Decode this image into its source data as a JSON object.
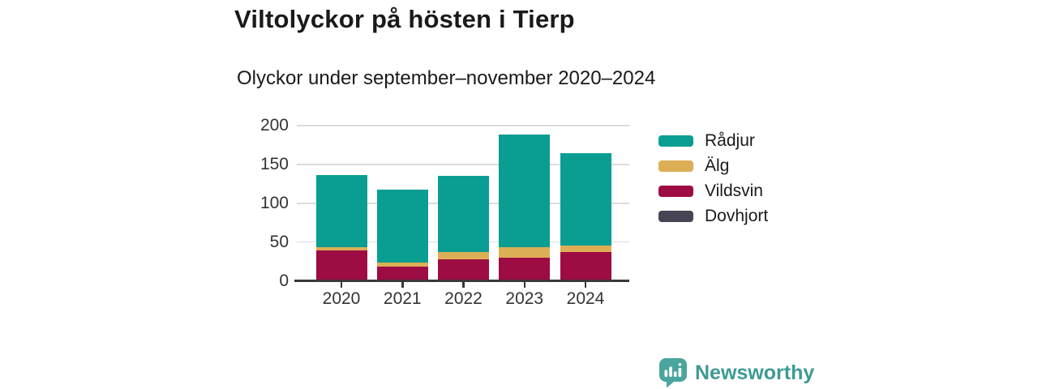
{
  "title": "Viltolyckor på hösten i Tierp",
  "subtitle": "Olyckor under september–november 2020–2024",
  "branding": {
    "logo_text": "Newsworthy",
    "logo_icon": "bar-chart-speech-bubble-icon",
    "logo_text_color": "#3d9a94",
    "logo_icon_color": "#4aa59e"
  },
  "chart_data": {
    "type": "bar",
    "stacked": true,
    "title": "Viltolyckor på hösten i Tierp",
    "subtitle": "Olyckor under september–november 2020–2024",
    "categories": [
      "2020",
      "2021",
      "2022",
      "2023",
      "2024"
    ],
    "series": [
      {
        "name": "Rådjur",
        "color": "#0a9e92",
        "values": [
          93,
          93,
          98,
          145,
          120
        ]
      },
      {
        "name": "Älg",
        "color": "#dcae55",
        "values": [
          4,
          6,
          9,
          13,
          8
        ]
      },
      {
        "name": "Vildsvin",
        "color": "#9d0c42",
        "values": [
          38,
          17,
          27,
          29,
          36
        ]
      },
      {
        "name": "Dovhjort",
        "color": "#474553",
        "values": [
          1,
          1,
          1,
          1,
          1
        ]
      }
    ],
    "stack_order_bottom_to_top": [
      "Dovhjort",
      "Vildsvin",
      "Älg",
      "Rådjur"
    ],
    "totals": [
      136,
      117,
      135,
      188,
      165
    ],
    "xlabel": "",
    "ylabel": "",
    "ylim": [
      0,
      200
    ],
    "yticks": [
      0,
      50,
      100,
      150,
      200
    ],
    "grid": true,
    "legend_position": "right"
  },
  "colors": {
    "background": "#ffffff",
    "grid": "#dcdcdc",
    "axis": "#3a373a",
    "tick_text": "#333333",
    "title_text": "#1a1a1a"
  }
}
